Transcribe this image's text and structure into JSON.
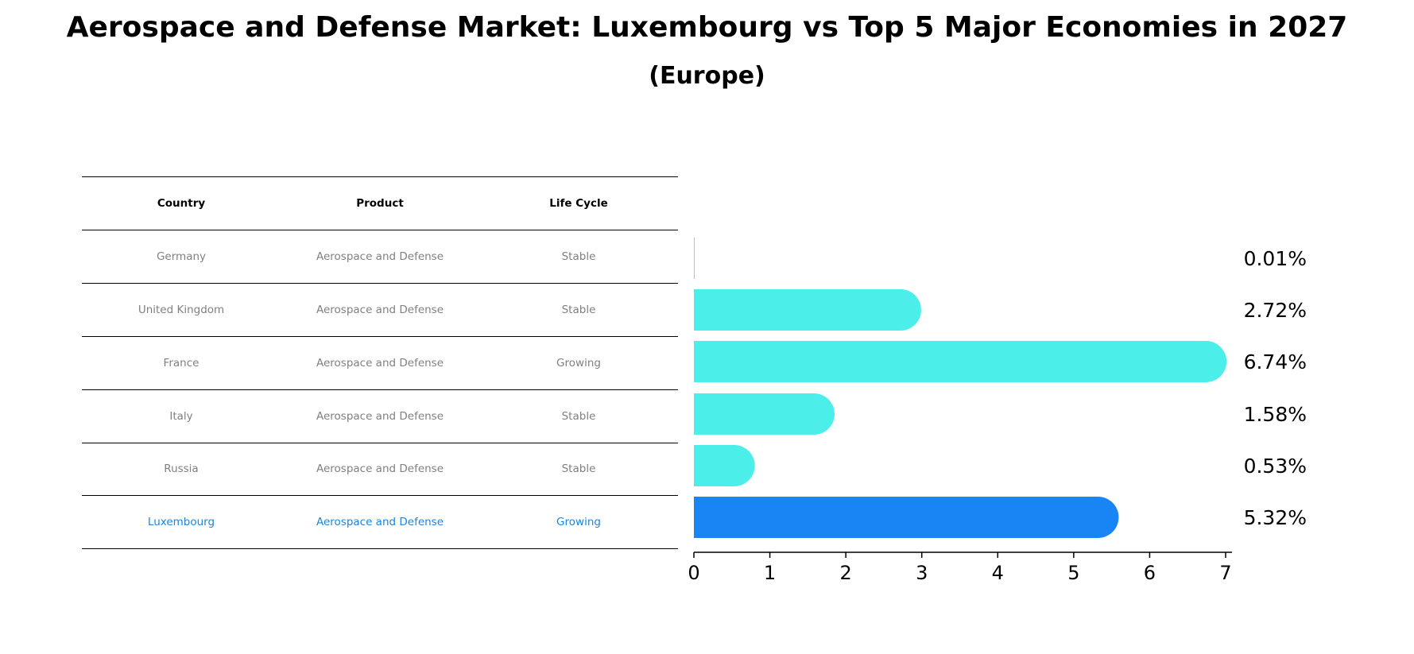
{
  "title": "Aerospace and Defense Market: Luxembourg vs Top 5 Major Economies in 2027",
  "subtitle": "(Europe)",
  "table": {
    "headers": [
      "Country",
      "Product",
      "Life Cycle"
    ],
    "rows": [
      [
        "Germany",
        "Aerospace and Defense",
        "Stable"
      ],
      [
        "United Kingdom",
        "Aerospace and Defense",
        "Stable"
      ],
      [
        "France",
        "Aerospace and Defense",
        "Growing"
      ],
      [
        "Italy",
        "Aerospace and Defense",
        "Stable"
      ],
      [
        "Russia",
        "Aerospace and Defense",
        "Stable"
      ],
      [
        "Luxembourg",
        "Aerospace and Defense",
        "Growing"
      ]
    ]
  },
  "chart_data": {
    "type": "bar",
    "orientation": "horizontal",
    "categories": [
      "Germany",
      "United Kingdom",
      "France",
      "Italy",
      "Russia",
      "Luxembourg"
    ],
    "values": [
      0.01,
      2.72,
      6.74,
      1.58,
      0.53,
      5.32
    ],
    "value_labels": [
      "0.01%",
      "2.72%",
      "6.74%",
      "1.58%",
      "0.53%",
      "5.32%"
    ],
    "xlim": [
      0,
      7
    ],
    "xticks": [
      "0",
      "1",
      "2",
      "3",
      "4",
      "5",
      "6",
      "7"
    ],
    "grid": false,
    "highlight": "Luxembourg",
    "colors": {
      "default": "#4beee9",
      "highlight": "#1985f5"
    }
  }
}
